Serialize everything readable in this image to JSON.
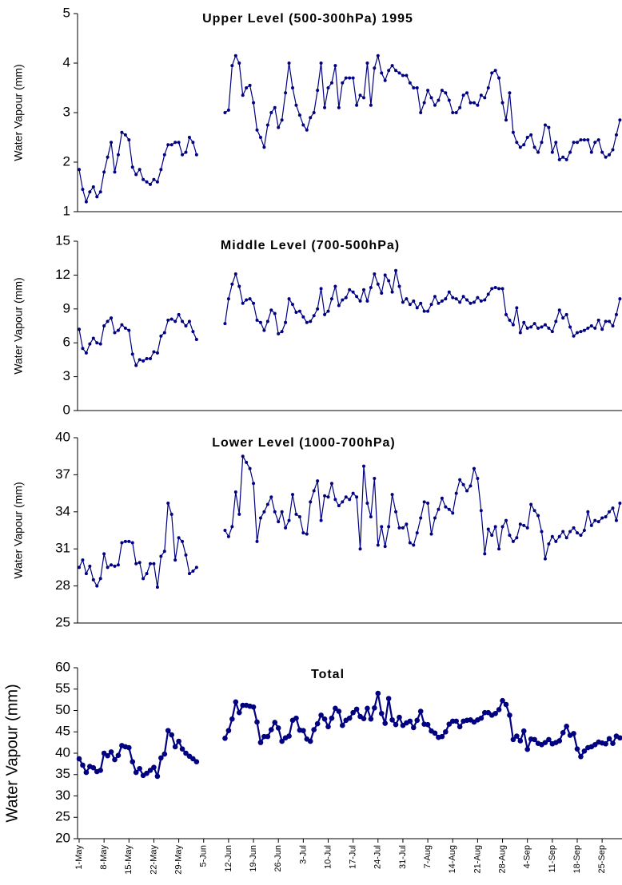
{
  "chart_data": [
    {
      "type": "line",
      "title": "Upper Level (500-300hPa) 1995",
      "y_label": "Water Vapour (mm)",
      "ylim": [
        1,
        5
      ],
      "yticks": [
        1,
        2,
        3,
        4,
        5
      ],
      "series": [
        {
          "color": "#000080",
          "values": [
            1.85,
            1.45,
            1.2,
            1.4,
            1.5,
            1.3,
            1.4,
            1.8,
            2.1,
            2.4,
            1.8,
            2.15,
            2.6,
            2.55,
            2.45,
            1.9,
            1.75,
            1.85,
            1.65,
            1.6,
            1.55,
            1.65,
            1.6,
            1.85,
            2.15,
            2.35,
            2.35,
            2.4,
            2.4,
            2.15,
            2.2,
            2.5,
            2.4,
            2.15,
            null,
            null,
            null,
            null,
            null,
            null,
            null,
            3.0,
            3.05,
            3.95,
            4.15,
            4.0,
            3.35,
            3.5,
            3.55,
            3.2,
            2.65,
            2.5,
            2.3,
            2.75,
            3.0,
            3.1,
            2.7,
            2.85,
            3.4,
            4.0,
            3.5,
            3.15,
            2.95,
            2.75,
            2.65,
            2.9,
            3.0,
            3.45,
            4.0,
            3.1,
            3.5,
            3.6,
            3.95,
            3.1,
            3.6,
            3.7,
            3.7,
            3.7,
            3.15,
            3.35,
            3.3,
            4.0,
            3.15,
            3.9,
            4.15,
            3.8,
            3.65,
            3.85,
            3.95,
            3.85,
            3.8,
            3.75,
            3.75,
            3.6,
            3.5,
            3.5,
            3.0,
            3.2,
            3.45,
            3.3,
            3.15,
            3.25,
            3.45,
            3.4,
            3.25,
            3.0,
            3.0,
            3.1,
            3.35,
            3.4,
            3.2,
            3.2,
            3.15,
            3.35,
            3.3,
            3.5,
            3.8,
            3.85,
            3.7,
            3.2,
            2.85,
            3.4,
            2.6,
            2.4,
            2.3,
            2.35,
            2.5,
            2.55,
            2.3,
            2.2,
            2.4,
            2.75,
            2.7,
            2.2,
            2.4,
            2.05,
            2.1,
            2.05,
            2.2,
            2.4,
            2.4,
            2.45,
            2.45,
            2.45,
            2.2,
            2.4,
            2.45,
            2.2,
            2.1,
            2.15,
            2.25,
            2.55,
            2.85
          ]
        }
      ]
    },
    {
      "type": "line",
      "title": "Middle Level (700-500hPa)",
      "y_label": "Water Vapour (mm)",
      "ylim": [
        0,
        15
      ],
      "yticks": [
        0,
        3,
        6,
        9,
        12,
        15
      ],
      "series": [
        {
          "color": "#000080",
          "values": [
            7.2,
            5.5,
            5.1,
            5.9,
            6.4,
            6.0,
            5.9,
            7.5,
            7.9,
            8.2,
            6.9,
            7.1,
            7.6,
            7.3,
            7.1,
            5.0,
            4.0,
            4.5,
            4.4,
            4.6,
            4.6,
            5.2,
            5.1,
            6.6,
            6.9,
            8.0,
            8.1,
            7.9,
            8.5,
            7.9,
            7.5,
            7.9,
            7.0,
            6.3,
            null,
            null,
            null,
            null,
            null,
            null,
            null,
            7.7,
            9.9,
            11.2,
            12.1,
            11.0,
            9.5,
            9.8,
            9.9,
            9.5,
            8.0,
            7.8,
            7.1,
            7.9,
            8.9,
            8.6,
            6.8,
            7.0,
            7.8,
            9.9,
            9.4,
            8.7,
            8.8,
            8.3,
            7.8,
            7.9,
            8.4,
            9.0,
            10.8,
            8.5,
            8.8,
            9.9,
            11.0,
            9.3,
            9.8,
            10.0,
            10.7,
            10.5,
            10.1,
            9.7,
            10.7,
            9.7,
            10.9,
            12.1,
            11.2,
            10.4,
            12.0,
            11.5,
            10.5,
            12.4,
            11.0,
            9.6,
            9.9,
            9.4,
            9.7,
            9.1,
            9.5,
            8.8,
            8.8,
            9.4,
            10.1,
            9.5,
            9.7,
            9.9,
            10.5,
            10.0,
            9.9,
            9.6,
            10.1,
            9.8,
            9.5,
            9.6,
            10.0,
            9.7,
            9.8,
            10.3,
            10.8,
            10.9,
            10.8,
            10.8,
            8.5,
            8.0,
            7.6,
            9.1,
            6.9,
            7.8,
            7.3,
            7.4,
            7.7,
            7.3,
            7.4,
            7.6,
            7.3,
            7.0,
            7.9,
            8.9,
            8.2,
            8.5,
            7.4,
            6.6,
            6.9,
            7.0,
            7.1,
            7.3,
            7.5,
            7.3,
            8.0,
            7.2,
            7.9,
            7.9,
            7.5,
            8.5,
            9.9
          ]
        }
      ]
    },
    {
      "type": "line",
      "title": "Lower Level (1000-700hPa)",
      "y_label": "Water Vapour (mm)",
      "ylim": [
        25,
        40
      ],
      "yticks": [
        25,
        28,
        31,
        34,
        37,
        40
      ],
      "series": [
        {
          "color": "#000080",
          "values": [
            29.5,
            30.1,
            29.0,
            29.6,
            28.5,
            28.0,
            28.6,
            30.6,
            29.5,
            29.7,
            29.6,
            29.7,
            31.5,
            31.6,
            31.6,
            31.5,
            29.8,
            29.9,
            28.6,
            29.0,
            29.8,
            29.8,
            27.9,
            30.4,
            30.8,
            34.7,
            33.8,
            30.1,
            31.9,
            31.6,
            30.5,
            29.0,
            29.2,
            29.5,
            null,
            null,
            null,
            null,
            null,
            null,
            null,
            32.5,
            32.0,
            32.8,
            35.6,
            33.8,
            38.5,
            38.0,
            37.5,
            36.3,
            31.6,
            33.5,
            34.0,
            34.6,
            35.2,
            34.0,
            33.2,
            34.0,
            32.7,
            33.3,
            35.4,
            33.8,
            33.6,
            32.3,
            32.2,
            34.8,
            35.7,
            36.5,
            33.3,
            35.3,
            35.2,
            36.3,
            35.0,
            34.5,
            34.8,
            35.2,
            35.0,
            35.5,
            35.2,
            31.0,
            37.7,
            34.7,
            33.6,
            36.7,
            31.3,
            32.8,
            31.2,
            32.8,
            35.4,
            34.0,
            32.7,
            32.7,
            33.0,
            31.5,
            31.3,
            32.3,
            33.5,
            34.8,
            34.7,
            32.2,
            33.5,
            34.2,
            35.1,
            34.4,
            34.2,
            33.9,
            35.5,
            36.6,
            36.2,
            35.7,
            36.1,
            37.5,
            36.7,
            34.1,
            30.6,
            32.6,
            32.1,
            32.8,
            31.0,
            32.8,
            33.3,
            32.1,
            31.6,
            31.9,
            33.0,
            32.9,
            32.7,
            34.6,
            34.1,
            33.7,
            32.4,
            30.2,
            31.4,
            32.0,
            31.6,
            32.0,
            32.4,
            31.9,
            32.4,
            32.7,
            32.3,
            32.1,
            32.5,
            34.0,
            32.9,
            33.3,
            33.2,
            33.5,
            33.6,
            34.0,
            34.3,
            33.3,
            34.7
          ]
        }
      ]
    },
    {
      "type": "line",
      "title": "Total",
      "y_label": "Water Vapour (mm)",
      "ylim": [
        20,
        60
      ],
      "yticks": [
        20,
        25,
        30,
        35,
        40,
        45,
        50,
        55,
        60
      ],
      "categories": [
        "1-May",
        null,
        null,
        null,
        null,
        null,
        null,
        "8-May",
        null,
        null,
        null,
        null,
        null,
        null,
        "15-May",
        null,
        null,
        null,
        null,
        null,
        null,
        "22-May",
        null,
        null,
        null,
        null,
        null,
        null,
        "29-May",
        null,
        null,
        null,
        null,
        null,
        null,
        "5-Jun",
        null,
        null,
        null,
        null,
        null,
        null,
        "12-Jun",
        null,
        null,
        null,
        null,
        null,
        null,
        "19-Jun",
        null,
        null,
        null,
        null,
        null,
        null,
        "26-Jun",
        null,
        null,
        null,
        null,
        null,
        null,
        "3-Jul",
        null,
        null,
        null,
        null,
        null,
        null,
        "10-Jul",
        null,
        null,
        null,
        null,
        null,
        null,
        "17-Jul",
        null,
        null,
        null,
        null,
        null,
        null,
        "24-Jul",
        null,
        null,
        null,
        null,
        null,
        null,
        "31-Jul",
        null,
        null,
        null,
        null,
        null,
        null,
        "7-Aug",
        null,
        null,
        null,
        null,
        null,
        null,
        "14-Aug",
        null,
        null,
        null,
        null,
        null,
        null,
        "21-Aug",
        null,
        null,
        null,
        null,
        null,
        null,
        "28-Aug",
        null,
        null,
        null,
        null,
        null,
        null,
        "4-Sep",
        null,
        null,
        null,
        null,
        null,
        null,
        "11-Sep",
        null,
        null,
        null,
        null,
        null,
        null,
        "18-Sep",
        null,
        null,
        null,
        null,
        null,
        null,
        "25-Sep",
        null,
        null,
        null,
        null,
        null
      ],
      "series": [
        {
          "color": "#000080",
          "values": [
            38.7,
            37.2,
            35.5,
            36.9,
            36.6,
            35.7,
            36.0,
            40.0,
            39.4,
            40.3,
            38.5,
            39.5,
            41.8,
            41.5,
            41.3,
            38.0,
            35.5,
            36.4,
            34.8,
            35.3,
            36.0,
            36.7,
            34.6,
            38.9,
            39.8,
            45.3,
            44.3,
            41.5,
            42.8,
            41.0,
            40.0,
            39.3,
            38.7,
            38.0,
            null,
            null,
            null,
            null,
            null,
            null,
            null,
            43.5,
            45.3,
            48.0,
            52.0,
            49.5,
            51.2,
            51.2,
            51.0,
            50.8,
            47.3,
            42.5,
            43.9,
            43.9,
            45.5,
            47.2,
            45.9,
            42.8,
            43.6,
            44.0,
            47.7,
            48.2,
            45.4,
            45.3,
            43.3,
            42.8,
            45.5,
            46.9,
            48.9,
            48.0,
            46.2,
            48.2,
            50.5,
            49.8,
            46.5,
            47.7,
            48.2,
            49.5,
            50.3,
            48.6,
            48.1,
            50.5,
            48.0,
            50.6,
            54.0,
            49.3,
            47.0,
            52.8,
            47.8,
            46.7,
            48.4,
            46.5,
            47.1,
            47.5,
            46.0,
            47.7,
            49.8,
            46.8,
            46.7,
            45.2,
            44.7,
            43.7,
            43.9,
            45.0,
            46.8,
            47.5,
            47.5,
            46.2,
            47.5,
            47.7,
            47.8,
            47.3,
            47.8,
            48.2,
            49.5,
            49.5,
            48.9,
            49.3,
            50.2,
            52.3,
            51.4,
            48.9,
            43.2,
            44.0,
            42.9,
            45.2,
            40.9,
            43.3,
            43.2,
            42.3,
            42.0,
            42.5,
            43.2,
            42.2,
            42.5,
            42.9,
            44.8,
            46.3,
            44.2,
            44.6,
            41.0,
            39.2,
            40.5,
            41.3,
            41.5,
            42.0,
            42.6,
            42.4,
            42.2,
            43.4,
            42.3,
            44.0,
            43.6
          ]
        }
      ]
    }
  ]
}
